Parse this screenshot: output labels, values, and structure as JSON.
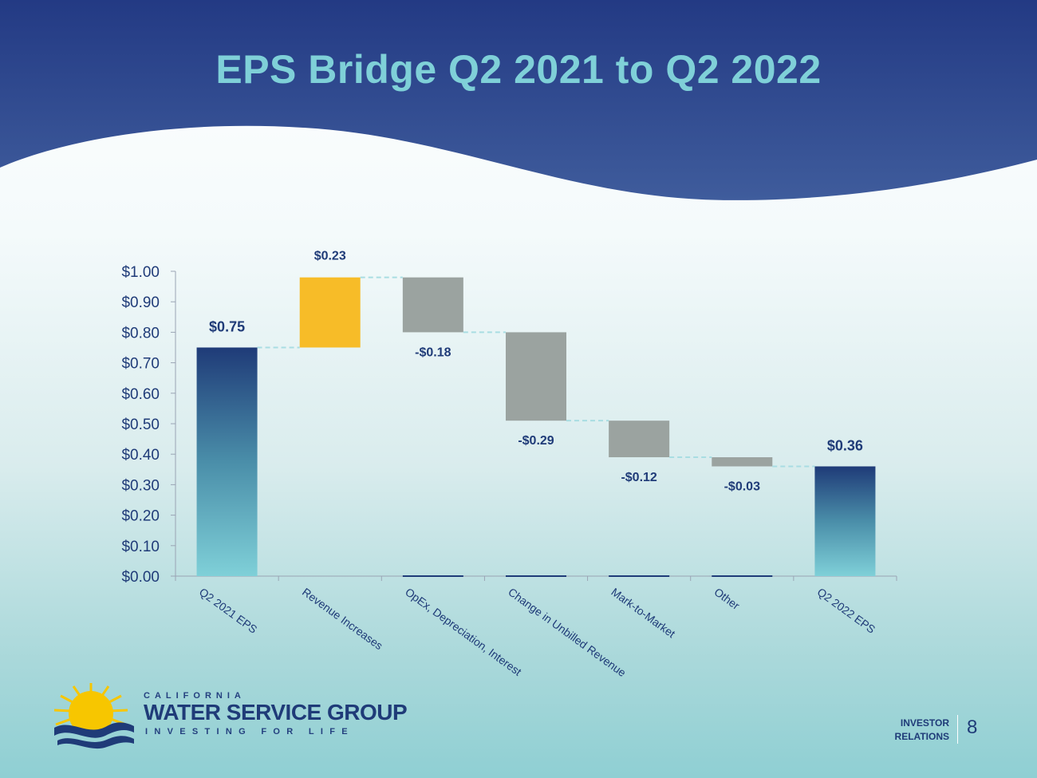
{
  "slide": {
    "title": "EPS Bridge Q2 2021 to Q2 2022",
    "page_number": "8",
    "footer_label_line1": "INVESTOR",
    "footer_label_line2": "RELATIONS"
  },
  "logo": {
    "top_text": "CALIFORNIA",
    "main_text": "WATER SERVICE GROUP",
    "tagline": "INVESTING FOR LIFE"
  },
  "colors": {
    "banner_dark": "#233a84",
    "title": "#7fd0d8",
    "increase": "#f7bc28",
    "decrease": "#9ba3a0",
    "total_top": "#1f3b78",
    "total_bottom": "#7fd0d8",
    "label_text": "#1f3b78",
    "connector": "#a9dde2"
  },
  "chart_data": {
    "type": "bar",
    "subtype": "waterfall",
    "title": "",
    "xlabel": "",
    "ylabel": "",
    "ylim": [
      0,
      1.0
    ],
    "yticks": [
      "$0.00",
      "$0.10",
      "$0.20",
      "$0.30",
      "$0.40",
      "$0.50",
      "$0.60",
      "$0.70",
      "$0.80",
      "$0.90",
      "$1.00"
    ],
    "categories": [
      "Q2 2021 EPS",
      "Revenue Increases",
      "OpEx, Depreciation, Interest",
      "Change in Unbilled Revenue",
      "Mark-to-Market",
      "Other",
      "Q2 2022 EPS"
    ],
    "values": [
      0.75,
      0.23,
      -0.18,
      -0.29,
      -0.12,
      -0.03,
      0.36
    ],
    "kinds": [
      "total",
      "increase",
      "decrease",
      "decrease",
      "decrease",
      "decrease",
      "total"
    ],
    "data_labels": [
      "$0.75",
      "$0.23",
      "-$0.18",
      "-$0.29",
      "-$0.12",
      "-$0.03",
      "$0.36"
    ],
    "grid": false,
    "legend": "none"
  }
}
